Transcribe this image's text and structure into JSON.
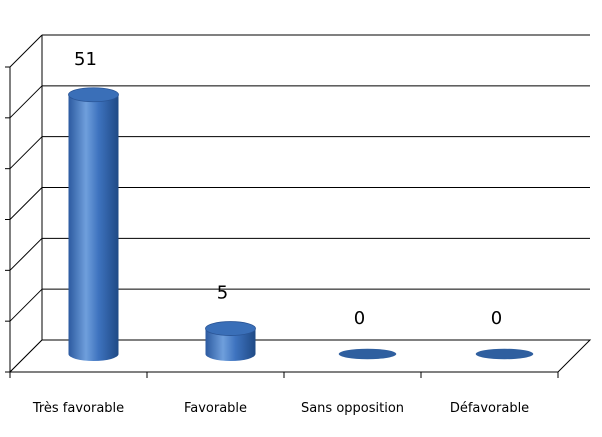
{
  "chart_data": {
    "type": "bar",
    "title": "",
    "categories": [
      "Très favorable",
      "Favorable",
      "Sans opposition",
      "Défavorable"
    ],
    "values": [
      51,
      5,
      0,
      0
    ],
    "data_labels": [
      "51",
      "5",
      "0",
      "0"
    ],
    "xlabel": "",
    "ylabel": "",
    "ylim": [
      0,
      60
    ],
    "grid": true,
    "legend": "none",
    "bar_style": "3d-cylinder",
    "colors": {
      "bar": "#3a6fb8",
      "bar_highlight": "#7aa6e0",
      "bar_top": "#2f5f9f",
      "grid": "#000000"
    }
  }
}
